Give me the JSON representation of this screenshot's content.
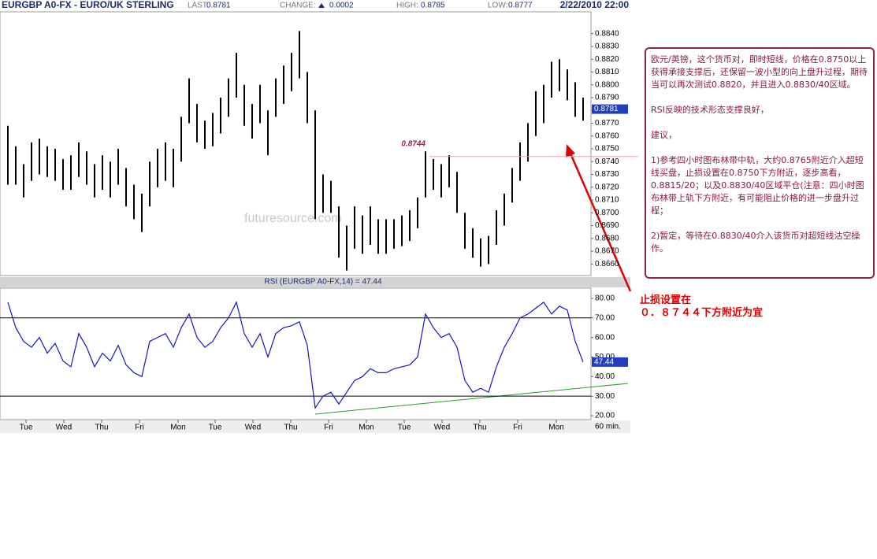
{
  "chart_data": [
    {
      "type": "hilo",
      "title": "EURGBP A0-FX - EURO/UK STERLING",
      "stats": [
        {
          "label": "LAST:",
          "value": 0.8781
        },
        {
          "label": "CHANGE:",
          "value": 0.0002
        },
        {
          "label": "HIGH:",
          "value": 0.8785
        },
        {
          "label": "LOW:",
          "value": 0.8777
        }
      ],
      "date": "2/22/2010 22:00",
      "last": 0.8781,
      "hline": 0.8744,
      "watermark": "futuresource.com",
      "color": "#000000",
      "xlim": [
        -1,
        74
      ],
      "ylim": [
        0.8651,
        0.8857
      ],
      "yticks": [
        {
          "value": 0.866,
          "label": "0.8660"
        },
        {
          "value": 0.867,
          "label": "0.8670"
        },
        {
          "value": 0.868,
          "label": "0.8680"
        },
        {
          "value": 0.869,
          "label": "0.8690"
        },
        {
          "value": 0.87,
          "label": "0.8700"
        },
        {
          "value": 0.871,
          "label": "0.8710"
        },
        {
          "value": 0.872,
          "label": "0.8720"
        },
        {
          "value": 0.873,
          "label": "0.8730"
        },
        {
          "value": 0.874,
          "label": "0.8740"
        },
        {
          "value": 0.875,
          "label": "0.8750"
        },
        {
          "value": 0.876,
          "label": "0.8760"
        },
        {
          "value": 0.877,
          "label": "0.8770"
        },
        {
          "value": 0.878,
          "label": "0.8780"
        },
        {
          "value": 0.879,
          "label": "0.8790"
        },
        {
          "value": 0.88,
          "label": "0.8800"
        },
        {
          "value": 0.881,
          "label": "0.8810"
        },
        {
          "value": 0.882,
          "label": "0.8820"
        },
        {
          "value": 0.883,
          "label": "0.8830"
        },
        {
          "value": 0.884,
          "label": "0.8840"
        }
      ],
      "high": [
        0.8768,
        0.8752,
        0.8738,
        0.8755,
        0.8758,
        0.8752,
        0.875,
        0.8742,
        0.8745,
        0.8755,
        0.8748,
        0.8738,
        0.8745,
        0.874,
        0.875,
        0.8735,
        0.8722,
        0.8715,
        0.874,
        0.875,
        0.8755,
        0.875,
        0.8775,
        0.8805,
        0.8785,
        0.8772,
        0.8778,
        0.879,
        0.8805,
        0.8825,
        0.88,
        0.8785,
        0.88,
        0.878,
        0.8805,
        0.8815,
        0.8825,
        0.8842,
        0.881,
        0.878,
        0.873,
        0.8725,
        0.8705,
        0.869,
        0.8705,
        0.8698,
        0.8705,
        0.8695,
        0.8695,
        0.8695,
        0.8698,
        0.8702,
        0.8712,
        0.8748,
        0.8742,
        0.8738,
        0.8745,
        0.8732,
        0.87,
        0.8688,
        0.868,
        0.8682,
        0.8702,
        0.8715,
        0.8735,
        0.8755,
        0.877,
        0.8795,
        0.88,
        0.8818,
        0.882,
        0.8812,
        0.8802,
        0.879
      ],
      "low": [
        0.8722,
        0.8722,
        0.8712,
        0.8725,
        0.873,
        0.8728,
        0.8725,
        0.8718,
        0.8718,
        0.8728,
        0.8722,
        0.8712,
        0.8718,
        0.8712,
        0.8722,
        0.8705,
        0.8695,
        0.8685,
        0.8705,
        0.872,
        0.8725,
        0.872,
        0.874,
        0.877,
        0.8755,
        0.875,
        0.8752,
        0.8762,
        0.8775,
        0.879,
        0.8768,
        0.8758,
        0.877,
        0.8745,
        0.8775,
        0.8785,
        0.8795,
        0.8805,
        0.877,
        0.8695,
        0.87,
        0.87,
        0.8665,
        0.8655,
        0.8672,
        0.8668,
        0.8675,
        0.8668,
        0.8668,
        0.8672,
        0.8674,
        0.8678,
        0.8688,
        0.8712,
        0.8718,
        0.8712,
        0.872,
        0.87,
        0.8672,
        0.8665,
        0.8658,
        0.866,
        0.8675,
        0.869,
        0.8708,
        0.8725,
        0.874,
        0.876,
        0.877,
        0.879,
        0.8795,
        0.8788,
        0.8775,
        0.8772
      ]
    },
    {
      "type": "line",
      "title": "RSI (EURGBP A0-FX,14) = 47.44",
      "color": "#1414c8",
      "levels": [
        30,
        70
      ],
      "x_unit": "60 min.",
      "xlim": [
        -1,
        74
      ],
      "ylim": [
        18,
        85.2
      ],
      "yticks": [
        {
          "value": 20,
          "label": "20.00"
        },
        {
          "value": 30,
          "label": "30.00"
        },
        {
          "value": 40,
          "label": "40.00"
        },
        {
          "value": 50,
          "label": "50.00"
        },
        {
          "value": 60,
          "label": "60.00"
        },
        {
          "value": 70,
          "label": "70.00"
        },
        {
          "value": 80,
          "label": "80.00"
        }
      ],
      "xticks": [
        {
          "value": 2.3,
          "label": "Tue"
        },
        {
          "value": 7.1,
          "label": "Wed"
        },
        {
          "value": 11.9,
          "label": "Thu"
        },
        {
          "value": 16.7,
          "label": "Fri"
        },
        {
          "value": 21.6,
          "label": "Mon"
        },
        {
          "value": 26.3,
          "label": "Tue"
        },
        {
          "value": 31.1,
          "label": "Wed"
        },
        {
          "value": 35.9,
          "label": "Thu"
        },
        {
          "value": 40.7,
          "label": "Fri"
        },
        {
          "value": 45.5,
          "label": "Mon"
        },
        {
          "value": 50.3,
          "label": "Tue"
        },
        {
          "value": 55.1,
          "label": "Wed"
        },
        {
          "value": 59.9,
          "label": "Thu"
        },
        {
          "value": 64.7,
          "label": "Fri"
        },
        {
          "value": 69.6,
          "label": "Mon"
        }
      ],
      "values": [
        78,
        65,
        58,
        55,
        60,
        52,
        57,
        48,
        45,
        62,
        55,
        45,
        52,
        48,
        56,
        46,
        42,
        40,
        58,
        60,
        62,
        55,
        65,
        72,
        60,
        55,
        58,
        65,
        70,
        78,
        62,
        55,
        62,
        50,
        62,
        65,
        66,
        68,
        56,
        24,
        30,
        32,
        26,
        32,
        38,
        40,
        44,
        42,
        42,
        44,
        45,
        46,
        50,
        72,
        65,
        60,
        62,
        55,
        38,
        32,
        34,
        32,
        45,
        55,
        62,
        70,
        72,
        75,
        78,
        72,
        76,
        74,
        58,
        47.44
      ]
    }
  ],
  "note": {
    "paragraphs": [
      "欧元/英镑，这个货币对，即时短线，价格在0.8750以上获得承接支撑后，还保留一波小型的向上盘升过程，期待当可以再次测试0.8820，并且进入0.8830/40区域。",
      "RSI反映的技术形态支撑良好，",
      "建议，",
      "1)参考四小时图布林带中轨，大约0.8765附近介入超短线买盘，止损设置在0.8750下方附近，逐步高看，0.8815/20；以及0.8830/40区域平仓(注意：四小时图布林带上轨下方附近，有可能阻止价格的进一步盘升过程；",
      "2)暂定，等待在0.8830/40介入该货币对超短线沽空操作。"
    ]
  },
  "stop_note": [
    "止损设置在",
    "０．８７４４下方附近为宜"
  ]
}
